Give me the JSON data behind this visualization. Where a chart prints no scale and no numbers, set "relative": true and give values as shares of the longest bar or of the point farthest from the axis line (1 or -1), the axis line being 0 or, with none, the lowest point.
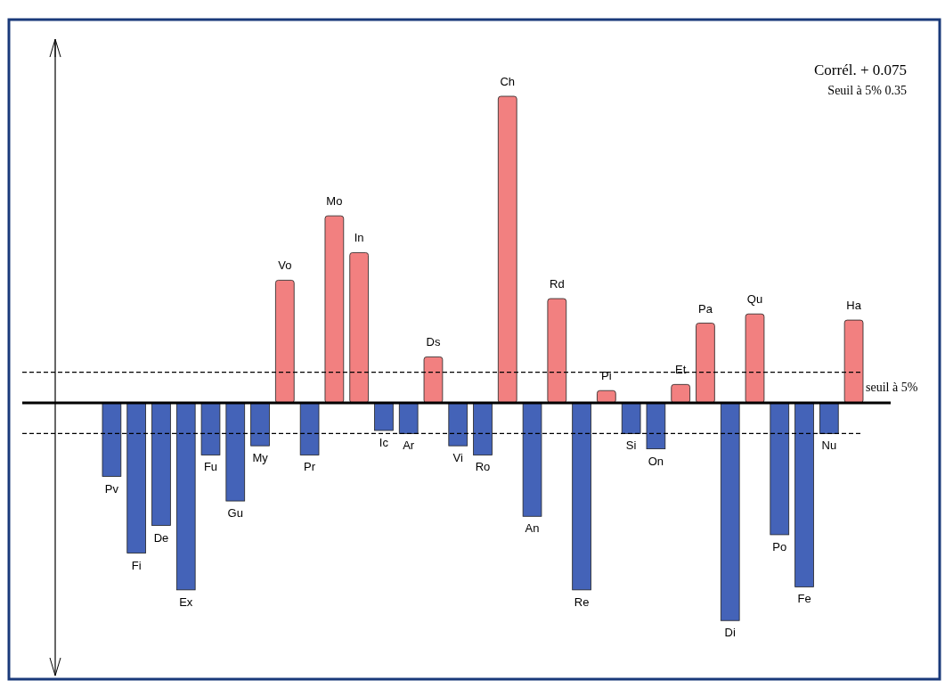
{
  "chart_data": {
    "type": "bar",
    "relative": true,
    "categories": [
      "Pv",
      "Fi",
      "De",
      "Ex",
      "Fu",
      "Gu",
      "My",
      "Vo",
      "Pr",
      "Mo",
      "In",
      "Ic",
      "Ar",
      "Ds",
      "Vi",
      "Ro",
      "Ch",
      "An",
      "Rd",
      "Re",
      "Pi",
      "Si",
      "On",
      "Et",
      "Pa",
      "Di",
      "Qu",
      "Po",
      "Fe",
      "Nu",
      "Ha"
    ],
    "values": [
      -0.24,
      -0.49,
      -0.4,
      -0.61,
      -0.17,
      -0.32,
      -0.14,
      0.4,
      -0.17,
      0.61,
      0.49,
      -0.09,
      -0.1,
      0.15,
      -0.14,
      -0.17,
      1,
      -0.37,
      0.34,
      -0.61,
      0.04,
      -0.1,
      -0.15,
      0.06,
      0.26,
      -0.71,
      0.29,
      -0.43,
      -0.6,
      -0.1,
      0.27
    ],
    "colors": [
      "#4463b8",
      "#4463b8",
      "#4463b8",
      "#4463b8",
      "#4463b8",
      "#4463b8",
      "#4463b8",
      "#f28080",
      "#4463b8",
      "#f28080",
      "#f28080",
      "#4463b8",
      "#4463b8",
      "#f28080",
      "#4463b8",
      "#4463b8",
      "#f28080",
      "#4463b8",
      "#f28080",
      "#4463b8",
      "#f28080",
      "#4463b8",
      "#4463b8",
      "#f28080",
      "#f28080",
      "#4463b8",
      "#f28080",
      "#4463b8",
      "#4463b8",
      "#4463b8",
      "#f28080"
    ],
    "ref_lines": [
      {
        "axis": "y",
        "value": 0.1,
        "label": "seuil à 5%",
        "line_style": "dashed"
      },
      {
        "axis": "y",
        "value": -0.1,
        "line_style": "dashed"
      }
    ],
    "annotations": [
      "Corrél. + 0.075",
      "Seuil à 5%  0.35"
    ]
  }
}
